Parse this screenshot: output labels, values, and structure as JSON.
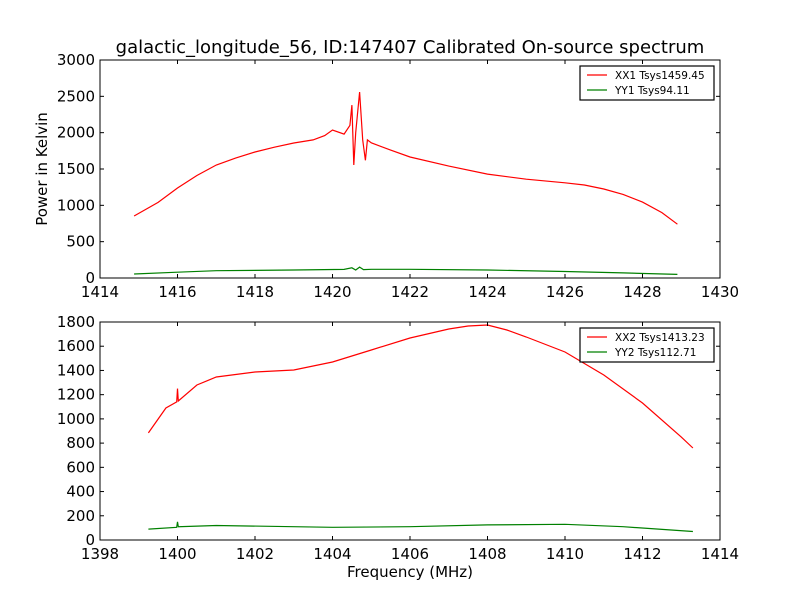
{
  "chart_data": [
    {
      "type": "line",
      "title": "galactic_longitude_56, ID:147407 Calibrated On-source spectrum",
      "xlabel": "",
      "ylabel": "Power in Kelvin",
      "xlim": [
        1414,
        1430
      ],
      "ylim": [
        0,
        3000
      ],
      "xticks": [
        1414,
        1416,
        1418,
        1420,
        1422,
        1424,
        1426,
        1428,
        1430
      ],
      "yticks": [
        0,
        500,
        1000,
        1500,
        2000,
        2500,
        3000
      ],
      "legend_position": "top-right",
      "series": [
        {
          "name": "XX1 Tsys1459.45",
          "color": "#ff0000",
          "x": [
            1414.88,
            1415.5,
            1416,
            1416.5,
            1417,
            1417.5,
            1418,
            1418.5,
            1419,
            1419.5,
            1419.8,
            1420,
            1420.3,
            1420.45,
            1420.5,
            1420.55,
            1420.6,
            1420.7,
            1420.78,
            1420.85,
            1420.9,
            1421,
            1421.5,
            1422,
            1423,
            1424,
            1425,
            1426,
            1426.5,
            1427,
            1427.5,
            1428,
            1428.5,
            1428.9
          ],
          "y": [
            853,
            1040,
            1238,
            1410,
            1555,
            1650,
            1734,
            1800,
            1858,
            1900,
            1960,
            2037,
            1980,
            2100,
            2380,
            1555,
            2000,
            2560,
            1900,
            1620,
            1900,
            1860,
            1760,
            1665,
            1540,
            1430,
            1360,
            1310,
            1280,
            1225,
            1150,
            1045,
            900,
            740
          ]
        },
        {
          "name": "YY1 Tsys94.11",
          "color": "#008000",
          "x": [
            1414.88,
            1416,
            1417,
            1419,
            1420.3,
            1420.5,
            1420.6,
            1420.7,
            1420.8,
            1421,
            1422,
            1424,
            1426,
            1427.5,
            1428.9
          ],
          "y": [
            55,
            80,
            100,
            110,
            118,
            140,
            110,
            150,
            115,
            120,
            120,
            110,
            90,
            70,
            50
          ]
        }
      ]
    },
    {
      "type": "line",
      "title": "",
      "xlabel": "Frequency (MHz)",
      "ylabel": "",
      "xlim": [
        1398,
        1414
      ],
      "ylim": [
        0,
        1800
      ],
      "xticks": [
        1398,
        1400,
        1402,
        1404,
        1406,
        1408,
        1410,
        1412,
        1414
      ],
      "yticks": [
        0,
        200,
        400,
        600,
        800,
        1000,
        1200,
        1400,
        1600,
        1800
      ],
      "legend_position": "top-right",
      "series": [
        {
          "name": "XX2 Tsys1413.23",
          "color": "#ff0000",
          "x": [
            1399.25,
            1399.7,
            1399.98,
            1400.0,
            1400.02,
            1400.5,
            1401,
            1402,
            1403,
            1404,
            1405,
            1406,
            1407,
            1407.5,
            1408,
            1408.5,
            1409,
            1410,
            1411,
            1412,
            1413,
            1413.3
          ],
          "y": [
            884,
            1090,
            1140,
            1250,
            1148,
            1280,
            1346,
            1387,
            1404,
            1470,
            1569,
            1668,
            1742,
            1767,
            1775,
            1734,
            1676,
            1552,
            1362,
            1131,
            850,
            760
          ]
        },
        {
          "name": "YY2 Tsys112.71",
          "color": "#008000",
          "x": [
            1399.25,
            1399.98,
            1400.0,
            1400.02,
            1401,
            1404,
            1406,
            1408,
            1410,
            1411.5,
            1413.3
          ],
          "y": [
            90,
            105,
            150,
            110,
            120,
            105,
            110,
            125,
            130,
            110,
            70
          ]
        }
      ]
    }
  ]
}
